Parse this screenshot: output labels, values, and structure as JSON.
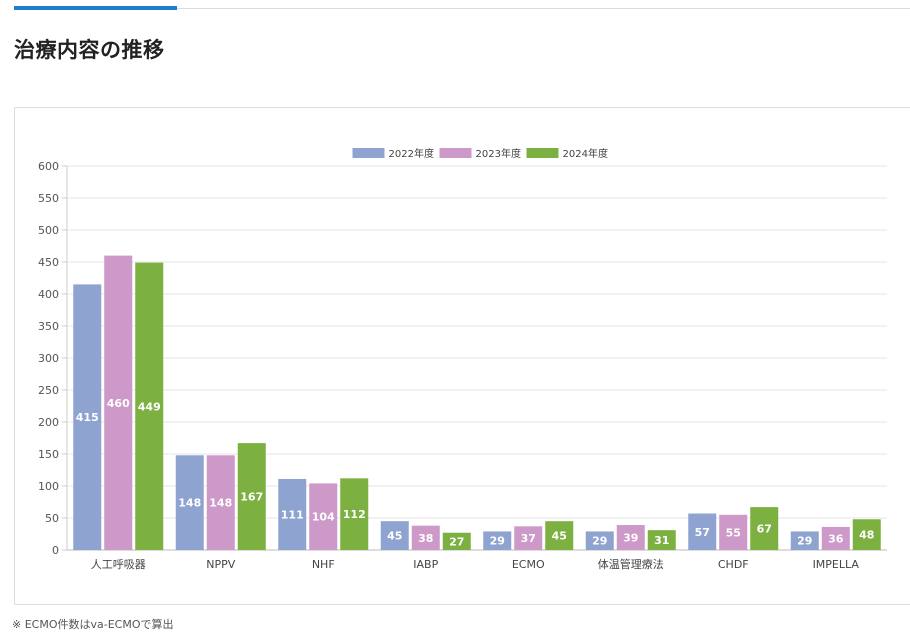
{
  "page": {
    "title": "治療内容の推移",
    "footnote": "※ ECMO件数はva-ECMOで算出"
  },
  "chart_data": {
    "type": "bar",
    "categories": [
      "人工呼吸器",
      "NPPV",
      "NHF",
      "IABP",
      "ECMO",
      "体温管理療法",
      "CHDF",
      "IMPELLA"
    ],
    "series": [
      {
        "name": "2022年度",
        "color": "#8fa3d0",
        "values": [
          415,
          148,
          111,
          45,
          29,
          29,
          57,
          29
        ]
      },
      {
        "name": "2023年度",
        "color": "#cc99c8",
        "values": [
          460,
          148,
          104,
          38,
          37,
          39,
          55,
          36
        ]
      },
      {
        "name": "2024年度",
        "color": "#7cb040",
        "values": [
          449,
          167,
          112,
          27,
          45,
          31,
          67,
          48
        ]
      }
    ],
    "ylim": [
      0,
      600
    ],
    "yticks": [
      0,
      50,
      100,
      150,
      200,
      250,
      300,
      350,
      400,
      450,
      500,
      550,
      600
    ],
    "grid": true,
    "legend_position": "top-center",
    "data_labels": true
  }
}
